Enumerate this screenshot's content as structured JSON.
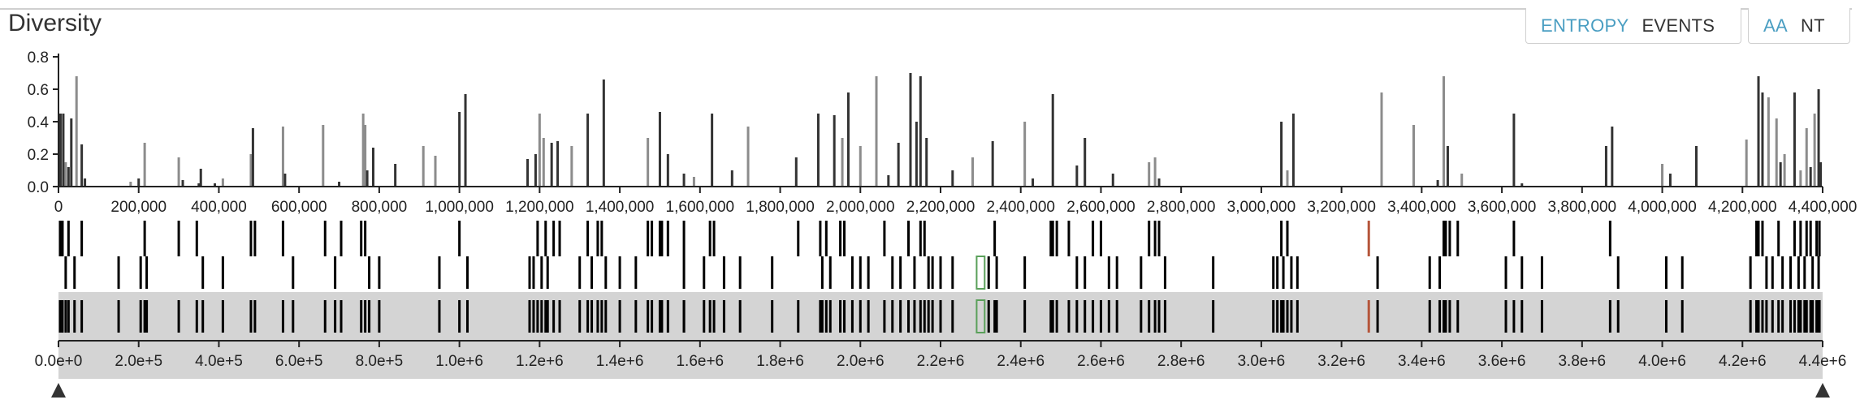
{
  "panel": {
    "title": "Diversity"
  },
  "toggles": {
    "metric": {
      "entropy_label": "ENTROPY",
      "events_label": "EVENTS",
      "selected": "ENTROPY"
    },
    "mode": {
      "aa_label": "AA",
      "nt_label": "NT",
      "selected": "AA"
    }
  },
  "colors": {
    "accent": "#4a9ec2",
    "bar_dark": "#333333",
    "bar_light": "#8c8c8c",
    "brush": "#d4d4d4",
    "gene_highlight_green": "#5aa05a",
    "gene_highlight_red": "#b5553a"
  },
  "chart_data": {
    "type": "bar",
    "y_ticks": [
      "0.0",
      "0.2",
      "0.4",
      "0.6",
      "0.8"
    ],
    "ylim": [
      0,
      0.8
    ],
    "xlim": [
      0,
      4400000
    ],
    "x_ticks": [
      "0",
      "200,000",
      "400,000",
      "600,000",
      "800,000",
      "1,000,000",
      "1,200,000",
      "1,400,000",
      "1,600,000",
      "1,800,000",
      "2,000,000",
      "2,200,000",
      "2,400,000",
      "2,600,000",
      "2,800,000",
      "3,000,000",
      "3,200,000",
      "3,400,000",
      "3,600,000",
      "3,800,000",
      "4,000,000",
      "4,200,000",
      "4,400,000"
    ],
    "nav_ticks": [
      "0.0e+0",
      "2.0e+5",
      "4.0e+5",
      "6.0e+5",
      "8.0e+5",
      "1.0e+6",
      "1.2e+6",
      "1.4e+6",
      "1.6e+6",
      "1.8e+6",
      "2.0e+6",
      "2.2e+6",
      "2.4e+6",
      "2.6e+6",
      "2.8e+6",
      "3.0e+6",
      "3.2e+6",
      "3.4e+6",
      "3.6e+6",
      "3.8e+6",
      "4.0e+6",
      "4.2e+6",
      "4.4e+6"
    ],
    "bars": [
      [
        5000,
        0.45,
        "d"
      ],
      [
        12000,
        0.45,
        "d"
      ],
      [
        18000,
        0.15,
        "l"
      ],
      [
        25000,
        0.12,
        "d"
      ],
      [
        32000,
        0.42,
        "d"
      ],
      [
        45000,
        0.68,
        "l"
      ],
      [
        58000,
        0.26,
        "d"
      ],
      [
        66000,
        0.05,
        "d"
      ],
      [
        180000,
        0.03,
        "l"
      ],
      [
        200000,
        0.05,
        "d"
      ],
      [
        215000,
        0.27,
        "l"
      ],
      [
        300000,
        0.18,
        "l"
      ],
      [
        310000,
        0.04,
        "d"
      ],
      [
        350000,
        0.02,
        "d"
      ],
      [
        355000,
        0.11,
        "d"
      ],
      [
        390000,
        0.02,
        "d"
      ],
      [
        410000,
        0.05,
        "l"
      ],
      [
        480000,
        0.2,
        "l"
      ],
      [
        485000,
        0.36,
        "d"
      ],
      [
        560000,
        0.37,
        "l"
      ],
      [
        565000,
        0.08,
        "d"
      ],
      [
        660000,
        0.38,
        "l"
      ],
      [
        700000,
        0.03,
        "d"
      ],
      [
        760000,
        0.45,
        "l"
      ],
      [
        765000,
        0.38,
        "l"
      ],
      [
        770000,
        0.1,
        "d"
      ],
      [
        785000,
        0.24,
        "d"
      ],
      [
        840000,
        0.14,
        "d"
      ],
      [
        910000,
        0.25,
        "l"
      ],
      [
        940000,
        0.19,
        "l"
      ],
      [
        1000000,
        0.46,
        "d"
      ],
      [
        1015000,
        0.57,
        "d"
      ],
      [
        1170000,
        0.17,
        "d"
      ],
      [
        1190000,
        0.2,
        "d"
      ],
      [
        1200000,
        0.45,
        "l"
      ],
      [
        1210000,
        0.3,
        "l"
      ],
      [
        1230000,
        0.27,
        "d"
      ],
      [
        1245000,
        0.28,
        "d"
      ],
      [
        1280000,
        0.25,
        "l"
      ],
      [
        1320000,
        0.45,
        "d"
      ],
      [
        1360000,
        0.66,
        "d"
      ],
      [
        1470000,
        0.3,
        "l"
      ],
      [
        1500000,
        0.46,
        "d"
      ],
      [
        1520000,
        0.2,
        "d"
      ],
      [
        1560000,
        0.08,
        "d"
      ],
      [
        1585000,
        0.06,
        "l"
      ],
      [
        1630000,
        0.45,
        "d"
      ],
      [
        1680000,
        0.1,
        "d"
      ],
      [
        1720000,
        0.37,
        "l"
      ],
      [
        1840000,
        0.18,
        "d"
      ],
      [
        1895000,
        0.45,
        "d"
      ],
      [
        1935000,
        0.44,
        "d"
      ],
      [
        1955000,
        0.3,
        "l"
      ],
      [
        1970000,
        0.58,
        "d"
      ],
      [
        2000000,
        0.25,
        "l"
      ],
      [
        2040000,
        0.68,
        "l"
      ],
      [
        2070000,
        0.07,
        "d"
      ],
      [
        2095000,
        0.27,
        "d"
      ],
      [
        2125000,
        0.7,
        "d"
      ],
      [
        2140000,
        0.4,
        "d"
      ],
      [
        2150000,
        0.68,
        "d"
      ],
      [
        2165000,
        0.3,
        "d"
      ],
      [
        2230000,
        0.1,
        "d"
      ],
      [
        2280000,
        0.18,
        "l"
      ],
      [
        2330000,
        0.28,
        "d"
      ],
      [
        2410000,
        0.4,
        "l"
      ],
      [
        2430000,
        0.05,
        "d"
      ],
      [
        2480000,
        0.57,
        "d"
      ],
      [
        2540000,
        0.13,
        "d"
      ],
      [
        2560000,
        0.3,
        "d"
      ],
      [
        2630000,
        0.08,
        "d"
      ],
      [
        2720000,
        0.15,
        "l"
      ],
      [
        2735000,
        0.18,
        "l"
      ],
      [
        2745000,
        0.05,
        "d"
      ],
      [
        3050000,
        0.4,
        "d"
      ],
      [
        3065000,
        0.1,
        "l"
      ],
      [
        3080000,
        0.45,
        "d"
      ],
      [
        3300000,
        0.58,
        "l"
      ],
      [
        3380000,
        0.38,
        "l"
      ],
      [
        3440000,
        0.04,
        "d"
      ],
      [
        3455000,
        0.68,
        "l"
      ],
      [
        3465000,
        0.25,
        "d"
      ],
      [
        3500000,
        0.08,
        "l"
      ],
      [
        3630000,
        0.45,
        "d"
      ],
      [
        3650000,
        0.02,
        "d"
      ],
      [
        3860000,
        0.25,
        "d"
      ],
      [
        3875000,
        0.37,
        "d"
      ],
      [
        4000000,
        0.14,
        "l"
      ],
      [
        4020000,
        0.08,
        "d"
      ],
      [
        4085000,
        0.25,
        "d"
      ],
      [
        4210000,
        0.29,
        "l"
      ],
      [
        4240000,
        0.68,
        "d"
      ],
      [
        4250000,
        0.58,
        "d"
      ],
      [
        4265000,
        0.55,
        "l"
      ],
      [
        4285000,
        0.42,
        "l"
      ],
      [
        4295000,
        0.15,
        "d"
      ],
      [
        4305000,
        0.2,
        "l"
      ],
      [
        4330000,
        0.58,
        "d"
      ],
      [
        4345000,
        0.1,
        "l"
      ],
      [
        4360000,
        0.36,
        "l"
      ],
      [
        4370000,
        0.12,
        "d"
      ],
      [
        4380000,
        0.45,
        "l"
      ],
      [
        4390000,
        0.6,
        "d"
      ],
      [
        4395000,
        0.15,
        "d"
      ]
    ],
    "genes_top": [
      4000,
      10000,
      25000,
      58000,
      215000,
      300000,
      345000,
      480000,
      490000,
      560000,
      665000,
      705000,
      755000,
      765000,
      1000000,
      1195000,
      1215000,
      1235000,
      1250000,
      1320000,
      1345000,
      1355000,
      1470000,
      1480000,
      1500000,
      1505000,
      1520000,
      1560000,
      1625000,
      1635000,
      1845000,
      1900000,
      1915000,
      1950000,
      1960000,
      2060000,
      2120000,
      2150000,
      2160000,
      2335000,
      2475000,
      2480000,
      2490000,
      2520000,
      2580000,
      2600000,
      2720000,
      2735000,
      2745000,
      3050000,
      3065000,
      3455000,
      3460000,
      3470000,
      3490000,
      3630000,
      3870000,
      4235000,
      4240000,
      4250000,
      4290000,
      4330000,
      4345000,
      4360000,
      4370000,
      4385000,
      4392000
    ],
    "genes_bottom": [
      18000,
      40000,
      150000,
      205000,
      220000,
      360000,
      410000,
      585000,
      690000,
      775000,
      800000,
      950000,
      1020000,
      1175000,
      1185000,
      1205000,
      1220000,
      1300000,
      1330000,
      1365000,
      1400000,
      1440000,
      1560000,
      1610000,
      1660000,
      1700000,
      1780000,
      1905000,
      1925000,
      1980000,
      2000000,
      2020000,
      2080000,
      2100000,
      2135000,
      2170000,
      2180000,
      2200000,
      2230000,
      2320000,
      2340000,
      2410000,
      2540000,
      2560000,
      2620000,
      2640000,
      2700000,
      2760000,
      2880000,
      3030000,
      3040000,
      3055000,
      3075000,
      3090000,
      3290000,
      3420000,
      3445000,
      3610000,
      3650000,
      3700000,
      3890000,
      4010000,
      4050000,
      4220000,
      4260000,
      4275000,
      4300000,
      4320000,
      4340000,
      4355000,
      4375000,
      4390000
    ],
    "highlight_green": [
      2290000,
      2310000
    ],
    "highlight_red": [
      3265000,
      3270000
    ]
  }
}
